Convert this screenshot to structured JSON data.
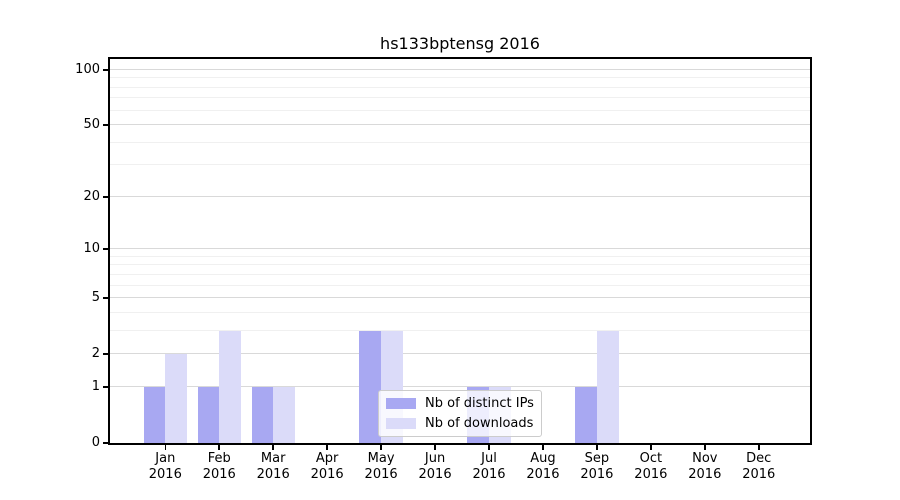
{
  "title": "hs133bptensg 2016",
  "legend": {
    "items": [
      {
        "label": "Nb of distinct IPs",
        "color": "#a8a8f2"
      },
      {
        "label": "Nb of downloads",
        "color": "#dbdbf9"
      }
    ]
  },
  "chart_data": {
    "type": "bar",
    "title": "hs133bptensg 2016",
    "categories": [
      "Jan",
      "Feb",
      "Mar",
      "Apr",
      "May",
      "Jun",
      "Jul",
      "Aug",
      "Sep",
      "Oct",
      "Nov",
      "Dec"
    ],
    "year_label": "2016",
    "series": [
      {
        "name": "Nb of distinct IPs",
        "color": "#a8a8f2",
        "values": [
          1,
          1,
          1,
          0,
          3,
          0,
          1,
          0,
          1,
          0,
          0,
          0
        ]
      },
      {
        "name": "Nb of downloads",
        "color": "#dbdbf9",
        "values": [
          2,
          3,
          1,
          0,
          3,
          0,
          1,
          0,
          3,
          0,
          0,
          0
        ]
      }
    ],
    "yscale": "log1p",
    "ylim": [
      0,
      115
    ],
    "y_major_ticks": [
      0,
      1,
      2,
      5,
      10,
      20,
      50,
      100
    ],
    "y_minor_gridlines": [
      3,
      4,
      6,
      7,
      8,
      9,
      30,
      40,
      60,
      70,
      80,
      90
    ],
    "grid": "horizontal",
    "legend_position": "lower-center-inside"
  }
}
